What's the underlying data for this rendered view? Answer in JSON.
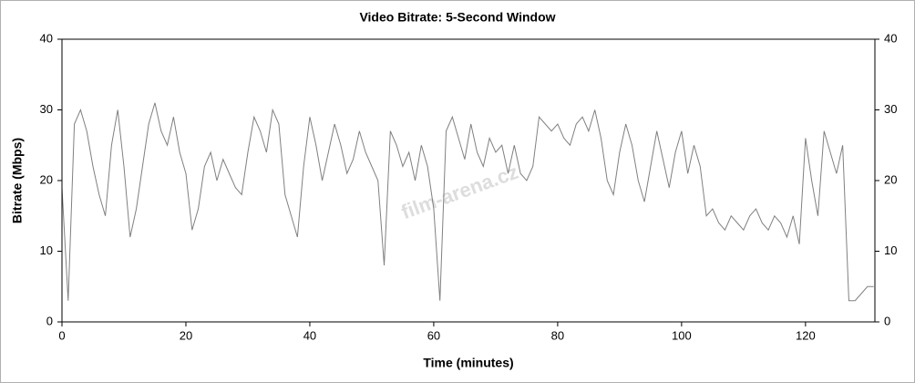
{
  "chart_data": {
    "type": "line",
    "title": "Video Bitrate: 5-Second Window",
    "x_label": "Time (minutes)",
    "y_label": "Bitrate (Mbps)",
    "watermark": "film-arena.cz",
    "x": [
      0,
      1,
      2,
      3,
      4,
      5,
      6,
      7,
      8,
      9,
      10,
      11,
      12,
      13,
      14,
      15,
      16,
      17,
      18,
      19,
      20,
      21,
      22,
      23,
      24,
      25,
      26,
      27,
      28,
      29,
      30,
      31,
      32,
      33,
      34,
      35,
      36,
      37,
      38,
      39,
      40,
      41,
      42,
      43,
      44,
      45,
      46,
      47,
      48,
      49,
      50,
      51,
      52,
      53,
      54,
      55,
      56,
      57,
      58,
      59,
      60,
      61,
      62,
      63,
      64,
      65,
      66,
      67,
      68,
      69,
      70,
      71,
      72,
      73,
      74,
      75,
      76,
      77,
      78,
      79,
      80,
      81,
      82,
      83,
      84,
      85,
      86,
      87,
      88,
      89,
      90,
      91,
      92,
      93,
      94,
      95,
      96,
      97,
      98,
      99,
      100,
      101,
      102,
      103,
      104,
      105,
      106,
      107,
      108,
      109,
      110,
      111,
      112,
      113,
      114,
      115,
      116,
      117,
      118,
      119,
      120,
      121,
      122,
      123,
      124,
      125,
      126,
      127,
      128,
      129,
      130,
      131
    ],
    "series": [
      {
        "name": "Bitrate",
        "color": "#808080",
        "values": [
          19,
          3,
          28,
          30,
          27,
          22,
          18,
          15,
          25,
          30,
          22,
          12,
          16,
          22,
          28,
          31,
          27,
          25,
          29,
          24,
          21,
          13,
          16,
          22,
          24,
          20,
          23,
          21,
          19,
          18,
          24,
          29,
          27,
          24,
          30,
          28,
          18,
          15,
          12,
          22,
          29,
          25,
          20,
          24,
          28,
          25,
          21,
          23,
          27,
          24,
          22,
          20,
          8,
          27,
          25,
          22,
          24,
          20,
          25,
          22,
          16,
          3,
          27,
          29,
          26,
          23,
          28,
          24,
          22,
          26,
          24,
          25,
          21,
          25,
          21,
          20,
          22,
          29,
          28,
          27,
          28,
          26,
          25,
          28,
          29,
          27,
          30,
          26,
          20,
          18,
          24,
          28,
          25,
          20,
          17,
          22,
          27,
          23,
          19,
          24,
          27,
          21,
          25,
          22,
          15,
          16,
          14,
          13,
          15,
          14,
          13,
          15,
          16,
          14,
          13,
          15,
          14,
          12,
          15,
          11,
          26,
          20,
          15,
          27,
          24,
          21,
          25,
          3,
          3,
          4,
          5,
          5
        ]
      }
    ],
    "xlim": [
      0,
      131.2
    ],
    "xticks": [
      0,
      20,
      40,
      60,
      80,
      100,
      120
    ],
    "ylim": [
      0,
      40
    ],
    "yticks": [
      0,
      10,
      20,
      30,
      40
    ],
    "y2lim": [
      0,
      40
    ],
    "y2ticks": [
      0,
      10,
      20,
      30,
      40
    ]
  }
}
